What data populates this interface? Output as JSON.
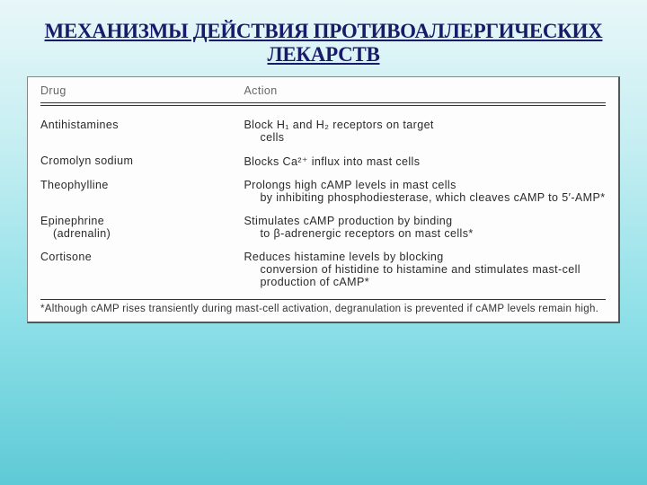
{
  "title_line1": "МЕХАНИЗМЫ ДЕЙСТВИЯ ПРОТИВОАЛЛЕРГИЧЕСКИХ",
  "title_line2": "ЛЕКАРСТВ",
  "header": {
    "drug": "Drug",
    "action": "Action"
  },
  "rows": [
    {
      "drug": "Antihistamines",
      "drug_sub": "",
      "action": "Block H₁ and H₂ receptors on target",
      "action_sub": "cells"
    },
    {
      "drug": "Cromolyn sodium",
      "drug_sub": "",
      "action": "Blocks Ca²⁺ influx into mast cells",
      "action_sub": ""
    },
    {
      "drug": "Theophylline",
      "drug_sub": "",
      "action": "Prolongs high cAMP levels in mast cells",
      "action_sub": "by inhibiting phosphodiesterase, which cleaves cAMP to 5′-AMP*"
    },
    {
      "drug": "Epinephrine",
      "drug_sub": "(adrenalin)",
      "action": "Stimulates cAMP production by binding",
      "action_sub": "to β-adrenergic receptors on mast cells*"
    },
    {
      "drug": "Cortisone",
      "drug_sub": "",
      "action": "Reduces histamine levels by blocking",
      "action_sub": "conversion of histidine to histamine and stimulates mast-cell production of cAMP*"
    }
  ],
  "footnote": "*Although cAMP rises transiently during mast-cell activation, degranulation is prevented if cAMP levels remain high.",
  "colors": {
    "title": "#1a1a6a",
    "table_bg": "#fdfdfd",
    "text": "#2a2a2a",
    "header_text": "#666666",
    "rule": "#333333"
  },
  "type": "table",
  "columns": [
    "Drug",
    "Action"
  ]
}
